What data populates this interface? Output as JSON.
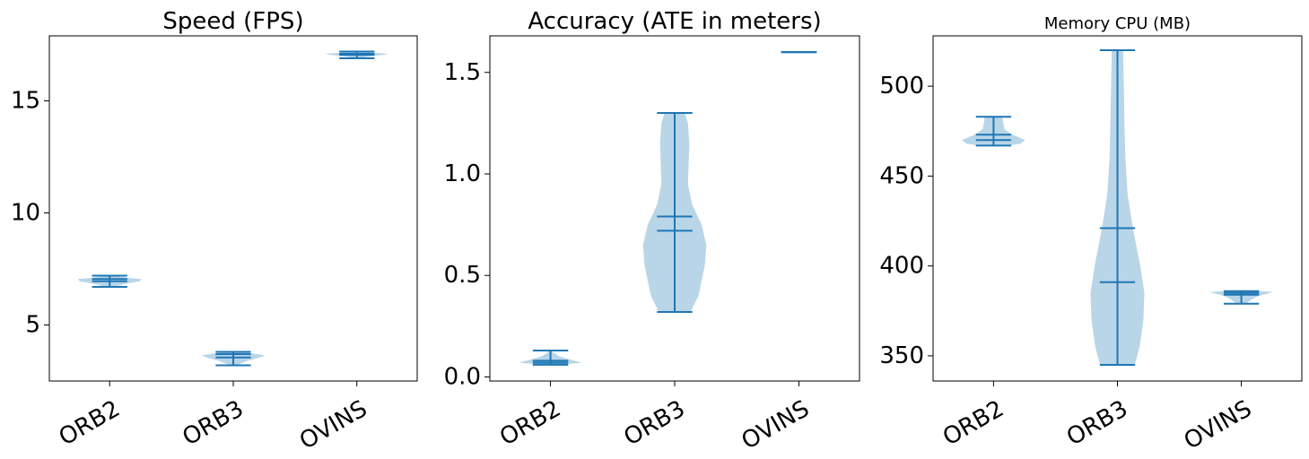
{
  "figure": {
    "background": "#ffffff",
    "violin_fill": "#b9d5e8",
    "line_color": "#1f77b4"
  },
  "chart_data": [
    {
      "type": "violin",
      "title": "Speed (FPS)",
      "categories": [
        "ORB2",
        "ORB3",
        "OVINS"
      ],
      "ylim": [
        2.5,
        17.9
      ],
      "yticks": [
        5,
        10,
        15
      ],
      "ytick_labels": [
        "5",
        "10",
        "15"
      ],
      "grid": false,
      "stats": [
        {
          "min": 6.7,
          "max": 7.2,
          "mean": 7.05,
          "median": 6.95
        },
        {
          "min": 3.2,
          "max": 3.8,
          "mean": 3.7,
          "median": 3.55
        },
        {
          "min": 16.9,
          "max": 17.2,
          "mean": 17.1,
          "median": 17.05
        }
      ],
      "density": [
        {
          "y": [
            6.7,
            6.85,
            6.95,
            7.05,
            7.1,
            7.2
          ],
          "w": [
            0.1,
            0.55,
            0.95,
            1.0,
            0.6,
            0.1
          ]
        },
        {
          "y": [
            3.2,
            3.4,
            3.55,
            3.65,
            3.75,
            3.8
          ],
          "w": [
            0.1,
            0.45,
            0.85,
            1.0,
            0.5,
            0.1
          ]
        },
        {
          "y": [
            16.9,
            17.0,
            17.05,
            17.1,
            17.15,
            17.2
          ],
          "w": [
            0.05,
            0.45,
            0.85,
            1.0,
            0.5,
            0.05
          ]
        }
      ]
    },
    {
      "type": "violin",
      "title": "Accuracy (ATE in meters)",
      "categories": [
        "ORB2",
        "ORB3",
        "OVINS"
      ],
      "ylim": [
        -0.02,
        1.68
      ],
      "yticks": [
        0.0,
        0.5,
        1.0,
        1.5
      ],
      "ytick_labels": [
        "0.0",
        "0.5",
        "1.0",
        "1.5"
      ],
      "grid": false,
      "stats": [
        {
          "min": 0.06,
          "max": 0.13,
          "mean": 0.08,
          "median": 0.07
        },
        {
          "min": 0.32,
          "max": 1.3,
          "mean": 0.79,
          "median": 0.72
        },
        {
          "min": 1.6,
          "max": 1.6,
          "mean": 1.6,
          "median": 1.6
        }
      ],
      "density": [
        {
          "y": [
            0.06,
            0.07,
            0.08,
            0.1,
            0.12,
            0.13
          ],
          "w": [
            0.2,
            1.0,
            0.75,
            0.3,
            0.08,
            0.05
          ]
        },
        {
          "y": [
            0.32,
            0.4,
            0.55,
            0.65,
            0.75,
            0.85,
            0.95,
            1.05,
            1.15,
            1.25,
            1.3
          ],
          "w": [
            0.5,
            0.75,
            0.95,
            1.0,
            0.85,
            0.55,
            0.42,
            0.44,
            0.46,
            0.42,
            0.32
          ]
        },
        {
          "y": [
            1.6,
            1.6
          ],
          "w": [
            0.0,
            0.0
          ]
        }
      ]
    },
    {
      "type": "violin",
      "title": "Memory CPU (MB)",
      "categories": [
        "ORB2",
        "ORB3",
        "OVINS"
      ],
      "ylim": [
        336,
        528
      ],
      "yticks": [
        350,
        400,
        450,
        500
      ],
      "ytick_labels": [
        "350",
        "400",
        "450",
        "500"
      ],
      "grid": false,
      "stats": [
        {
          "min": 467,
          "max": 483,
          "mean": 473,
          "median": 470
        },
        {
          "min": 345,
          "max": 520,
          "mean": 421,
          "median": 391
        },
        {
          "min": 379,
          "max": 386,
          "mean": 385,
          "median": 384
        }
      ],
      "density": [
        {
          "y": [
            467,
            468,
            470,
            473,
            476,
            480,
            483
          ],
          "w": [
            0.5,
            0.85,
            1.0,
            0.6,
            0.35,
            0.3,
            0.28
          ]
        },
        {
          "y": [
            345,
            355,
            370,
            385,
            400,
            420,
            440,
            460,
            480,
            500,
            520
          ],
          "w": [
            0.55,
            0.7,
            0.82,
            0.85,
            0.72,
            0.5,
            0.32,
            0.25,
            0.22,
            0.2,
            0.18
          ]
        },
        {
          "y": [
            379,
            381,
            383,
            384.5,
            385.5,
            386
          ],
          "w": [
            0.15,
            0.3,
            0.5,
            0.8,
            1.0,
            0.6
          ]
        }
      ]
    }
  ]
}
